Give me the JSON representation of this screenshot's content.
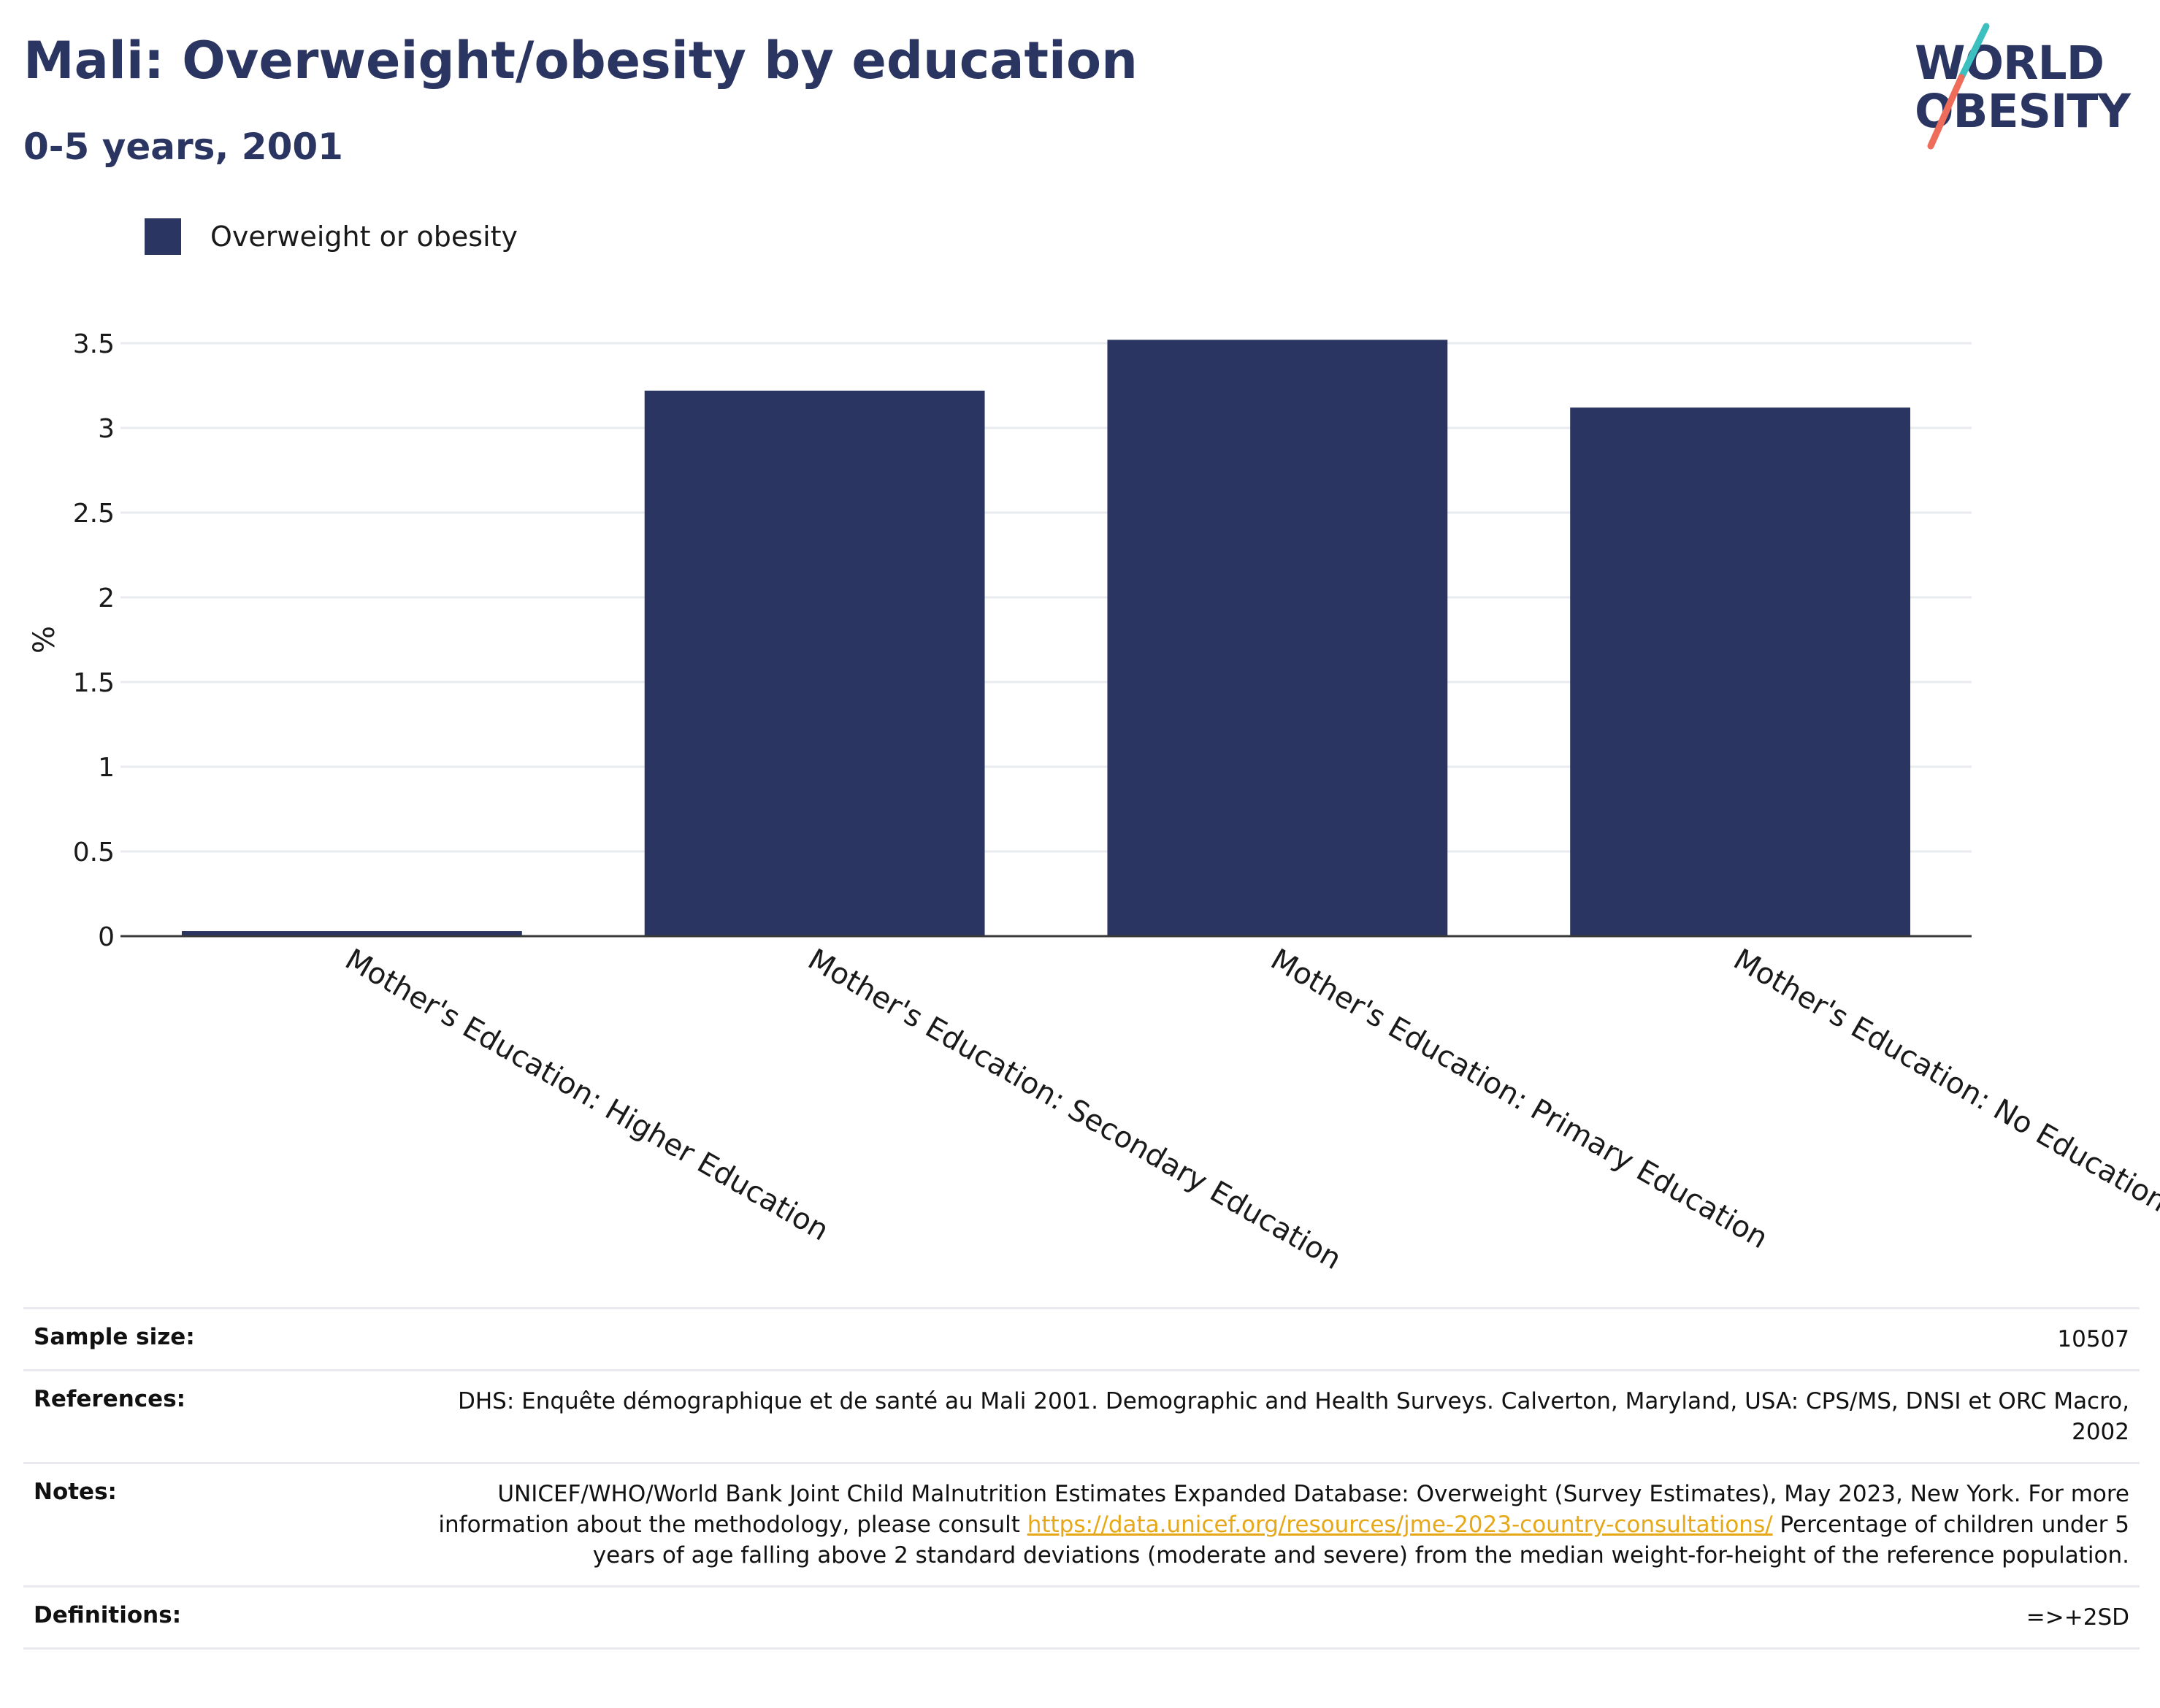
{
  "header": {
    "title": "Mali: Overweight/obesity by education",
    "subtitle": "0-5 years, 2001"
  },
  "logo": {
    "line1": "WORLD",
    "line2": "OBESITY",
    "colors": {
      "text": "#2b3561",
      "slash_top": "#3bbfbf",
      "slash_bottom": "#ef6b5a"
    }
  },
  "legend": {
    "label": "Overweight or obesity",
    "color": "#2b3561"
  },
  "chart_data": {
    "type": "bar",
    "categories": [
      "Mother's Education: Higher Education",
      "Mother's Education: Secondary Education",
      "Mother's Education: Primary Education",
      "Mother's Education: No Education"
    ],
    "series": [
      {
        "name": "Overweight or obesity",
        "values": [
          0.03,
          3.22,
          3.52,
          3.12
        ],
        "color": "#2b3561"
      }
    ],
    "ylabel": "%",
    "xlabel": "",
    "ylim": [
      0,
      3.5
    ],
    "yticks": [
      0,
      0.5,
      1,
      1.5,
      2,
      2.5,
      3,
      3.5
    ],
    "ytick_labels": [
      "0",
      "0.5",
      "1",
      "1.5",
      "2",
      "2.5",
      "3",
      "3.5"
    ],
    "grid": true
  },
  "info": {
    "sample_size_label": "Sample size:",
    "sample_size_value": "10507",
    "references_label": "References:",
    "references_value": "DHS: Enquête démographique et de santé au Mali 2001. Demographic and Health Surveys. Calverton, Maryland, USA: CPS/MS, DNSI et ORC Macro, 2002",
    "notes_label": "Notes:",
    "notes_text_1": "UNICEF/WHO/World Bank Joint Child Malnutrition Estimates Expanded Database: Overweight (Survey Estimates), May 2023, New York. For more information about the methodology, please consult ",
    "notes_link": "https://data.unicef.org/resources/jme-2023-country-consultations/",
    "notes_text_2": " Percentage of children under 5 years of age falling above 2 standard deviations (moderate and severe) from the median weight-for-height of the reference population.",
    "definitions_label": "Definitions:",
    "definitions_value": "=>+2SD"
  }
}
